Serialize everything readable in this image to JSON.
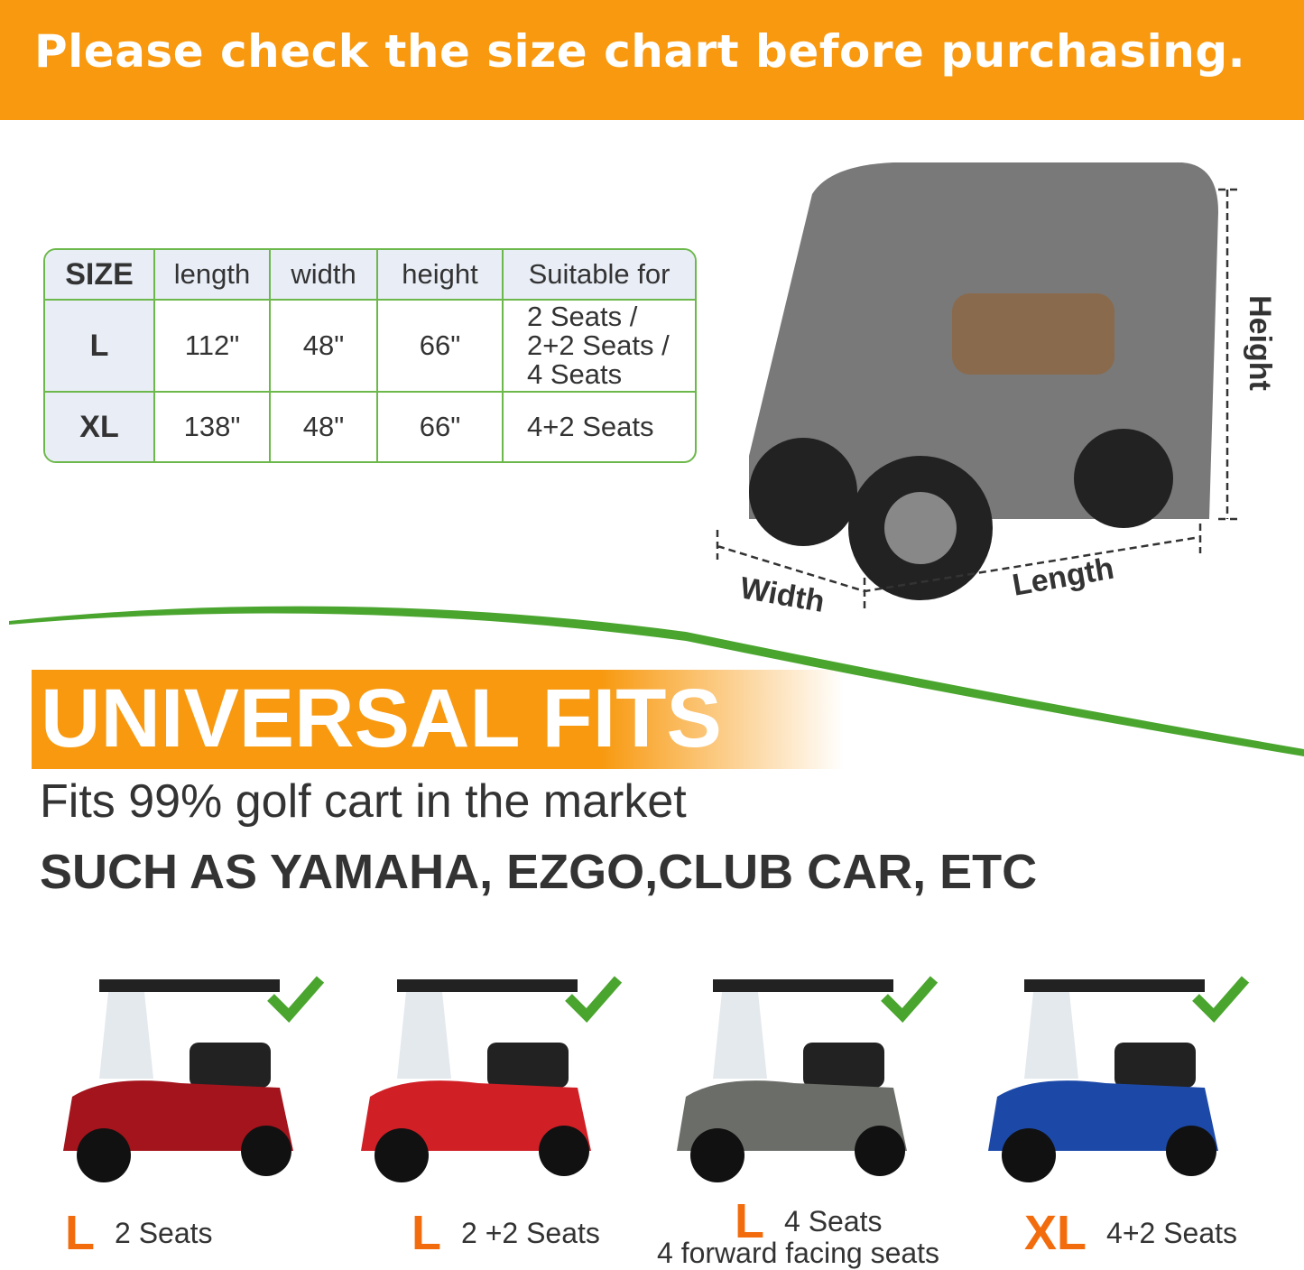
{
  "banner": {
    "text": "Please check the size chart before purchasing."
  },
  "size_table": {
    "headers": [
      "SIZE",
      "length",
      "width",
      "height",
      "Suitable for"
    ],
    "rows": [
      {
        "size": "L",
        "length": "112\"",
        "width": "48\"",
        "height": "66\"",
        "suitable": [
          "2 Seats /",
          "2+2 Seats /",
          "4 Seats"
        ]
      },
      {
        "size": "XL",
        "length": "138\"",
        "width": "48\"",
        "height": "66\"",
        "suitable": [
          "4+2 Seats"
        ]
      }
    ]
  },
  "diagram": {
    "height_label": "Height",
    "width_label": "Width",
    "length_label": "Length"
  },
  "universal": {
    "title": "UNIVERSAL FITS",
    "subtitle": "Fits 99% golf cart in the market",
    "brands": "SUCH AS YAMAHA, EZGO,CLUB CAR, ETC"
  },
  "carts": [
    {
      "size": "L",
      "label": "2 Seats",
      "color": "#a3141c"
    },
    {
      "size": "L",
      "label": "2 +2 Seats",
      "color": "#d11f26"
    },
    {
      "size": "L",
      "label": "4 Seats",
      "sublabel": "4 forward facing seats",
      "color": "#6b6e68"
    },
    {
      "size": "XL",
      "label": "4+2 Seats",
      "color": "#1c49a8"
    }
  ],
  "colors": {
    "orange": "#f8990f",
    "green": "#4aa52e",
    "size_letter": "#f26c0d"
  }
}
